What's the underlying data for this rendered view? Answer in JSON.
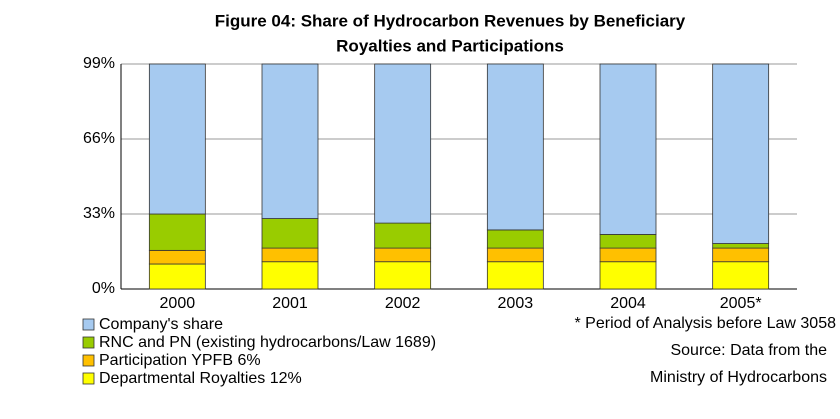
{
  "chart_data": {
    "type": "stacked_bar",
    "title": "Figure 04: Share of Hydrocarbon Revenues by Beneficiary",
    "subtitle": "Royalties and Participations",
    "categories": [
      "2000",
      "2001",
      "2002",
      "2003",
      "2004",
      "2005*"
    ],
    "series": [
      {
        "name": "Departmental Royalties 12%",
        "color": "#ffff00",
        "values": [
          11,
          12,
          12,
          12,
          12,
          12
        ]
      },
      {
        "name": "Participation YPFB 6%",
        "color": "#ffc000",
        "values": [
          6,
          6,
          6,
          6,
          6,
          6
        ]
      },
      {
        "name": "RNC and PN (existing hydrocarbons/Law 1689)",
        "color": "#99cc00",
        "values": [
          16,
          13,
          11,
          8,
          6,
          2
        ]
      },
      {
        "name": "Company's share",
        "color": "#a6caf0",
        "values": [
          66,
          68,
          70,
          73,
          75,
          79
        ]
      }
    ],
    "ylim": [
      0,
      99
    ],
    "yticks": [
      {
        "value": 0,
        "label": "0%"
      },
      {
        "value": 33,
        "label": "33%"
      },
      {
        "value": 66,
        "label": "66%"
      },
      {
        "value": 99,
        "label": "99%"
      }
    ],
    "grid": true,
    "notes": [
      "* Period of Analysis before Law 3058",
      "Source: Data from the",
      "Ministry of Hydrocarbons"
    ]
  }
}
